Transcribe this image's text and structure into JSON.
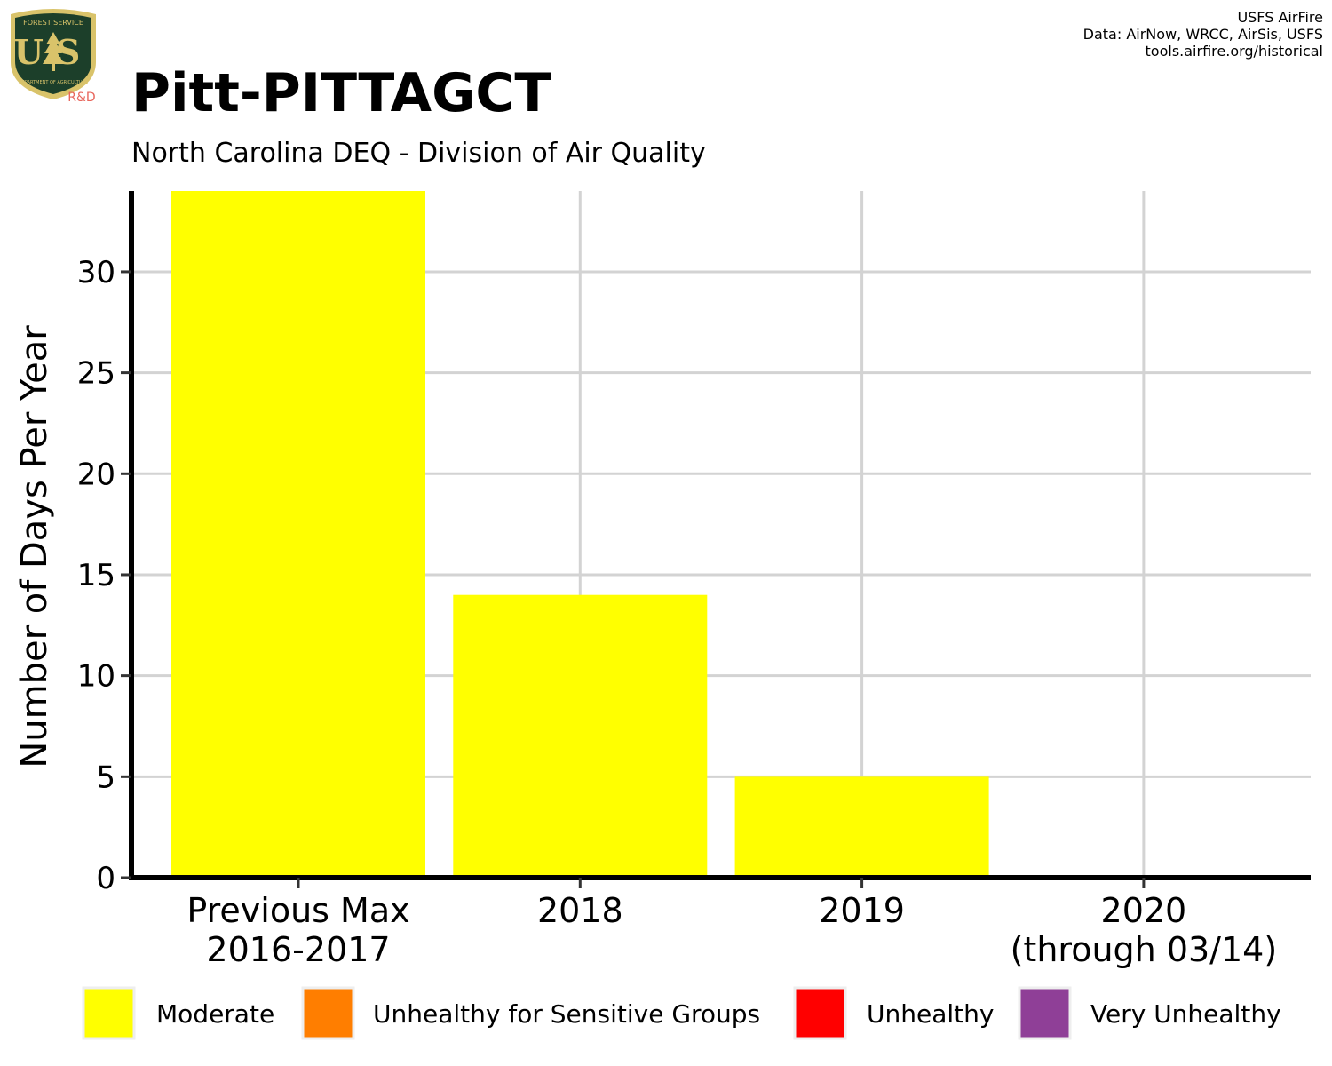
{
  "logo": {
    "top_text": "FOREST SERVICE",
    "letters": "US",
    "bottom_text": "DEPARTMENT OF AGRICULTURE",
    "rd": "R&D",
    "colors": {
      "shield": "#1c3f2a",
      "gold": "#d9c36a",
      "rd": "#e8665c"
    }
  },
  "credits": {
    "line1": "USFS AirFire",
    "line2": "Data: AirNow, WRCC, AirSis, USFS",
    "line3": "tools.airfire.org/historical"
  },
  "title": "Pitt-PITTAGCT",
  "subtitle": "North Carolina DEQ - Division of Air Quality",
  "chart_data": {
    "type": "bar",
    "categories": [
      [
        "Previous Max",
        "2016-2017"
      ],
      [
        "2018"
      ],
      [
        "2019"
      ],
      [
        "2020",
        "(through 03/14)"
      ]
    ],
    "series": [
      {
        "name": "Moderate",
        "color": "#ffff00",
        "values": [
          34,
          14,
          5,
          0
        ]
      },
      {
        "name": "Unhealthy for Sensitive Groups",
        "color": "#ff7e00",
        "values": [
          0,
          0,
          0,
          0
        ]
      },
      {
        "name": "Unhealthy",
        "color": "#ff0000",
        "values": [
          0,
          0,
          0,
          0
        ]
      },
      {
        "name": "Very Unhealthy",
        "color": "#8f3f97",
        "values": [
          0,
          0,
          0,
          0
        ]
      }
    ],
    "ylabel": "Number of Days Per Year",
    "xlabel": "",
    "ylim": [
      0,
      34
    ],
    "yticks": [
      0,
      5,
      10,
      15,
      20,
      25,
      30
    ],
    "grid": true,
    "legend_position": "bottom",
    "grid_color": "#d3d3d3"
  }
}
